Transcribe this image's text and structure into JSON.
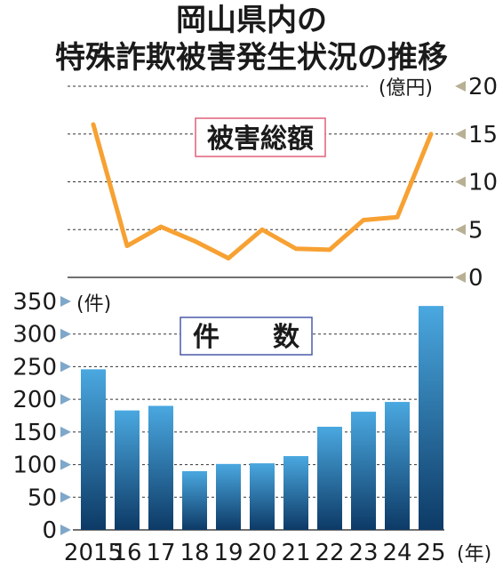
{
  "title_line1": "岡山県内の",
  "title_line2": "特殊詐欺被害発生状況の推移",
  "colors": {
    "line": "#f7a133",
    "bar_top": "#4aa8e0",
    "bar_bottom": "#0d3a66",
    "marker": "#b8b094",
    "amount_box_border": "#e0607a",
    "count_box_border": "#4a5aa8"
  },
  "chart_data": [
    {
      "type": "line",
      "title": "被害総額",
      "unit": "(億円)",
      "categories": [
        "2015",
        "16",
        "17",
        "18",
        "19",
        "20",
        "21",
        "22",
        "23",
        "24",
        "25"
      ],
      "series": [
        {
          "values": [
            16.0,
            3.3,
            5.3,
            3.8,
            2.0,
            5.0,
            3.0,
            2.9,
            6.0,
            6.3,
            15.0
          ]
        }
      ],
      "yticks": [
        "20",
        "15",
        "10",
        "5",
        "0"
      ],
      "ylim": [
        0,
        20
      ],
      "grid": true
    },
    {
      "type": "bar",
      "title": "件　　数",
      "unit": "(件)",
      "categories": [
        "2015",
        "16",
        "17",
        "18",
        "19",
        "20",
        "21",
        "22",
        "23",
        "24",
        "25"
      ],
      "values": [
        246,
        183,
        190,
        90,
        101,
        102,
        113,
        158,
        181,
        196,
        343
      ],
      "yticks": [
        "350",
        "300",
        "250",
        "200",
        "150",
        "100",
        "50",
        "0"
      ],
      "ylim": [
        0,
        350
      ],
      "xunit": "(年)",
      "grid": true
    }
  ]
}
